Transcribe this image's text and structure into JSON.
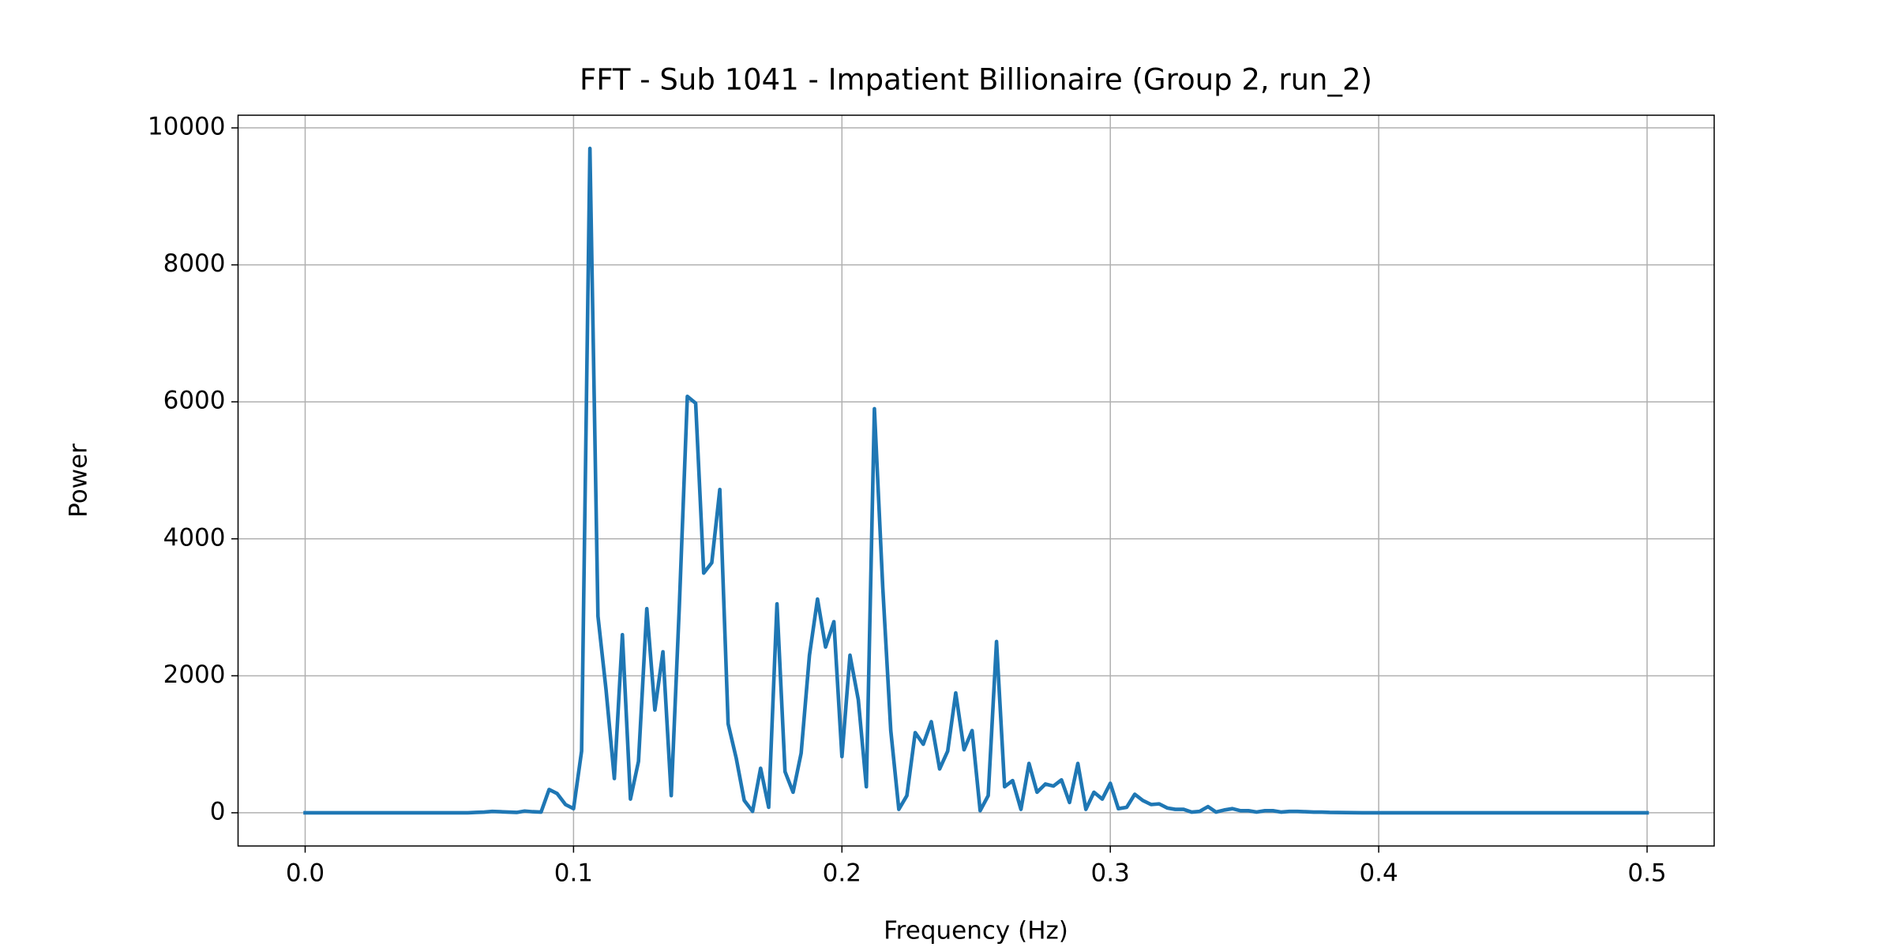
{
  "chart_data": {
    "type": "line",
    "title": "FFT - Sub 1041 - Impatient Billionaire (Group 2, run_2)",
    "x_label": "Frequency (Hz)",
    "y_label": "Power",
    "x": [
      0,
      0.0303,
      0.0606,
      0.0636,
      0.0667,
      0.0697,
      0.0727,
      0.0758,
      0.0788,
      0.0818,
      0.0848,
      0.0879,
      0.0909,
      0.0939,
      0.097,
      0.1,
      0.103,
      0.1061,
      0.1091,
      0.1121,
      0.1152,
      0.1182,
      0.1212,
      0.1242,
      0.1273,
      0.1303,
      0.1333,
      0.1364,
      0.1394,
      0.1424,
      0.1455,
      0.1485,
      0.1515,
      0.1545,
      0.1576,
      0.1606,
      0.1636,
      0.1667,
      0.1697,
      0.1727,
      0.1758,
      0.1788,
      0.1818,
      0.1848,
      0.1879,
      0.1909,
      0.1939,
      0.197,
      0.2,
      0.203,
      0.2061,
      0.2091,
      0.2121,
      0.2152,
      0.2182,
      0.2212,
      0.2242,
      0.2273,
      0.2303,
      0.2333,
      0.2364,
      0.2394,
      0.2424,
      0.2455,
      0.2485,
      0.2515,
      0.2545,
      0.2576,
      0.2606,
      0.2636,
      0.2667,
      0.2697,
      0.2727,
      0.2758,
      0.2788,
      0.2818,
      0.2848,
      0.2879,
      0.2909,
      0.2939,
      0.297,
      0.3,
      0.303,
      0.3061,
      0.3091,
      0.3121,
      0.3152,
      0.3182,
      0.3212,
      0.3242,
      0.3273,
      0.3303,
      0.3333,
      0.3364,
      0.3394,
      0.3424,
      0.3455,
      0.3485,
      0.3515,
      0.3545,
      0.3576,
      0.3606,
      0.3636,
      0.3667,
      0.3697,
      0.3727,
      0.3758,
      0.3788,
      0.3818,
      0.3939,
      0.4394,
      0.5
    ],
    "series": [
      {
        "name": "Power",
        "color": "#1f77b4",
        "values": [
          0,
          0,
          0,
          5,
          10,
          20,
          15,
          10,
          5,
          25,
          15,
          10,
          340,
          280,
          120,
          60,
          900,
          9700,
          2870,
          1800,
          500,
          2600,
          200,
          750,
          2980,
          1500,
          2350,
          250,
          3000,
          6080,
          5980,
          3500,
          3650,
          4720,
          1300,
          800,
          180,
          20,
          650,
          80,
          3050,
          600,
          300,
          870,
          2300,
          3120,
          2420,
          2790,
          820,
          2300,
          1650,
          380,
          5900,
          3300,
          1200,
          50,
          250,
          1170,
          1000,
          1330,
          640,
          900,
          1750,
          920,
          1200,
          30,
          250,
          2500,
          380,
          470,
          50,
          720,
          300,
          420,
          390,
          480,
          150,
          720,
          50,
          300,
          200,
          430,
          60,
          80,
          270,
          180,
          120,
          130,
          70,
          50,
          50,
          10,
          20,
          90,
          10,
          40,
          60,
          30,
          30,
          10,
          30,
          30,
          10,
          20,
          20,
          15,
          10,
          10,
          5,
          0,
          0,
          0
        ]
      }
    ],
    "xlim": [
      -0.025,
      0.525
    ],
    "xticks": [
      {
        "value": 0,
        "label": "0.0"
      },
      0.1,
      0.2,
      0.3,
      0.4,
      0.5
    ],
    "ylim": [
      -485,
      10185
    ],
    "yticks": [
      0,
      2000,
      4000,
      6000,
      8000,
      10000
    ],
    "grid": true
  }
}
